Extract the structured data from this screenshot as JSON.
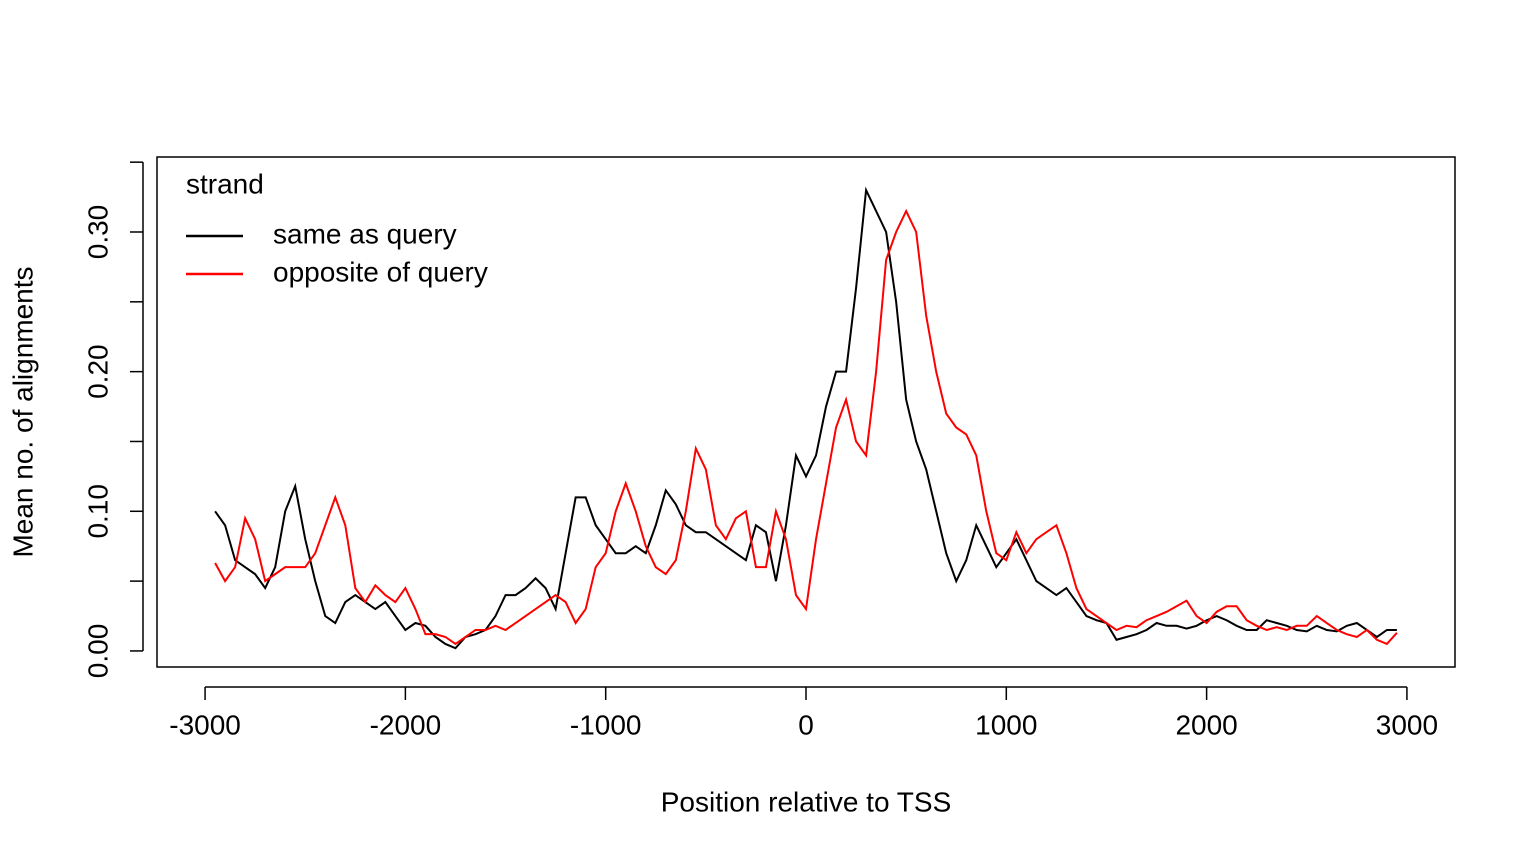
{
  "chart_data": {
    "type": "line",
    "xlabel": "Position relative to TSS",
    "ylabel": "Mean no. of alignments",
    "legend_title": "strand",
    "legend": "topleft",
    "x": [
      -2950,
      -2900,
      -2850,
      -2800,
      -2750,
      -2700,
      -2650,
      -2600,
      -2550,
      -2500,
      -2450,
      -2400,
      -2350,
      -2300,
      -2250,
      -2200,
      -2150,
      -2100,
      -2050,
      -2000,
      -1950,
      -1900,
      -1850,
      -1800,
      -1750,
      -1700,
      -1650,
      -1600,
      -1550,
      -1500,
      -1450,
      -1400,
      -1350,
      -1300,
      -1250,
      -1200,
      -1150,
      -1100,
      -1050,
      -1000,
      -950,
      -900,
      -850,
      -800,
      -750,
      -700,
      -650,
      -600,
      -550,
      -500,
      -450,
      -400,
      -350,
      -300,
      -250,
      -200,
      -150,
      -100,
      -50,
      0,
      50,
      100,
      150,
      200,
      250,
      300,
      350,
      400,
      450,
      500,
      550,
      600,
      650,
      700,
      750,
      800,
      850,
      900,
      950,
      1000,
      1050,
      1100,
      1150,
      1200,
      1250,
      1300,
      1350,
      1400,
      1450,
      1500,
      1550,
      1600,
      1650,
      1700,
      1750,
      1800,
      1850,
      1900,
      1950,
      2000,
      2050,
      2100,
      2150,
      2200,
      2250,
      2300,
      2350,
      2400,
      2450,
      2500,
      2550,
      2600,
      2650,
      2700,
      2750,
      2800,
      2850,
      2900,
      2950
    ],
    "series": [
      {
        "name": "same as query",
        "color": "#000000",
        "values": [
          0.1,
          0.09,
          0.065,
          0.06,
          0.055,
          0.045,
          0.06,
          0.1,
          0.118,
          0.08,
          0.05,
          0.025,
          0.02,
          0.035,
          0.04,
          0.035,
          0.03,
          0.035,
          0.025,
          0.015,
          0.02,
          0.018,
          0.01,
          0.005,
          0.002,
          0.01,
          0.012,
          0.015,
          0.025,
          0.04,
          0.04,
          0.045,
          0.052,
          0.045,
          0.03,
          0.07,
          0.11,
          0.11,
          0.09,
          0.08,
          0.07,
          0.07,
          0.075,
          0.07,
          0.09,
          0.115,
          0.105,
          0.09,
          0.085,
          0.085,
          0.08,
          0.075,
          0.07,
          0.065,
          0.09,
          0.085,
          0.05,
          0.09,
          0.14,
          0.125,
          0.14,
          0.175,
          0.2,
          0.2,
          0.26,
          0.33,
          0.315,
          0.3,
          0.25,
          0.18,
          0.15,
          0.13,
          0.1,
          0.07,
          0.05,
          0.065,
          0.09,
          0.075,
          0.06,
          0.07,
          0.08,
          0.065,
          0.05,
          0.045,
          0.04,
          0.045,
          0.035,
          0.025,
          0.022,
          0.02,
          0.008,
          0.01,
          0.012,
          0.015,
          0.02,
          0.018,
          0.018,
          0.016,
          0.018,
          0.022,
          0.025,
          0.022,
          0.018,
          0.015,
          0.015,
          0.022,
          0.02,
          0.018,
          0.015,
          0.014,
          0.018,
          0.015,
          0.014,
          0.018,
          0.02,
          0.015,
          0.01,
          0.015,
          0.015
        ]
      },
      {
        "name": "opposite of query",
        "color": "#ff0000",
        "values": [
          0.063,
          0.05,
          0.06,
          0.095,
          0.08,
          0.05,
          0.055,
          0.06,
          0.06,
          0.06,
          0.07,
          0.09,
          0.11,
          0.09,
          0.045,
          0.035,
          0.047,
          0.04,
          0.035,
          0.045,
          0.03,
          0.012,
          0.012,
          0.01,
          0.005,
          0.01,
          0.015,
          0.015,
          0.018,
          0.015,
          0.02,
          0.025,
          0.03,
          0.035,
          0.04,
          0.035,
          0.02,
          0.03,
          0.06,
          0.07,
          0.1,
          0.12,
          0.1,
          0.075,
          0.06,
          0.055,
          0.065,
          0.1,
          0.145,
          0.13,
          0.09,
          0.08,
          0.095,
          0.1,
          0.06,
          0.06,
          0.1,
          0.08,
          0.04,
          0.03,
          0.08,
          0.12,
          0.16,
          0.18,
          0.15,
          0.14,
          0.2,
          0.28,
          0.3,
          0.315,
          0.3,
          0.24,
          0.2,
          0.17,
          0.16,
          0.155,
          0.14,
          0.1,
          0.07,
          0.065,
          0.085,
          0.07,
          0.08,
          0.085,
          0.09,
          0.07,
          0.045,
          0.03,
          0.025,
          0.02,
          0.015,
          0.018,
          0.017,
          0.022,
          0.025,
          0.028,
          0.032,
          0.036,
          0.025,
          0.02,
          0.028,
          0.032,
          0.032,
          0.022,
          0.018,
          0.015,
          0.017,
          0.015,
          0.018,
          0.018,
          0.025,
          0.02,
          0.015,
          0.012,
          0.01,
          0.015,
          0.008,
          0.005,
          0.013
        ]
      }
    ],
    "xlim": [
      -3240,
      3240
    ],
    "ylim": [
      -0.0115,
      0.3537
    ],
    "xticks": [
      -3000,
      -2000,
      -1000,
      0,
      1000,
      2000,
      3000
    ],
    "yticks": [
      {
        "value": 0,
        "label": "0.00"
      },
      {
        "value": 0.1,
        "label": "0.10"
      },
      {
        "value": 0.2,
        "label": "0.20"
      },
      {
        "value": 0.3,
        "label": "0.30"
      }
    ],
    "yminor_ticks": [
      0.05,
      0.15,
      0.25,
      0.35
    ],
    "grid": false
  }
}
